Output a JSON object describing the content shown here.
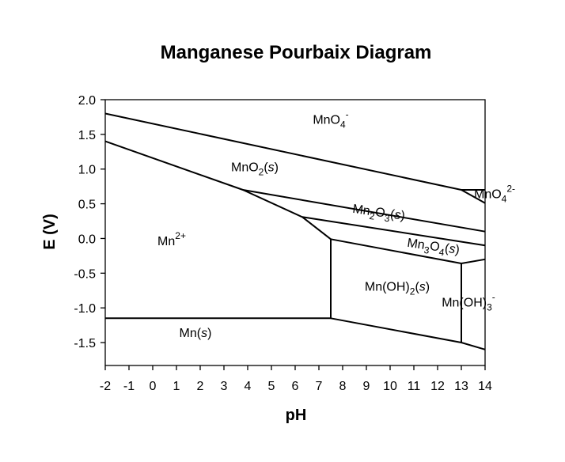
{
  "chart_data": {
    "type": "line",
    "title": "Manganese Pourbaix Diagram",
    "xlabel": "pH",
    "ylabel": "E (V)",
    "xlim": [
      -2,
      14
    ],
    "ylim": [
      -1.83,
      2.0
    ],
    "xticks": [
      "-2",
      "-1",
      "0",
      "1",
      "2",
      "3",
      "4",
      "5",
      "6",
      "7",
      "8",
      "9",
      "10",
      "11",
      "12",
      "13",
      "14"
    ],
    "yticks": [
      "2.0",
      "1.5",
      "1.0",
      "0.5",
      "0.0",
      "-0.5",
      "-1.0",
      "-1.5"
    ],
    "grid": false,
    "boundaries": [
      {
        "x": [
          -2,
          13.0
        ],
        "y": [
          1.8,
          0.7
        ]
      },
      {
        "x": [
          13.0,
          14.0
        ],
        "y": [
          0.7,
          0.7
        ]
      },
      {
        "x": [
          13.0,
          14.0
        ],
        "y": [
          0.7,
          0.51
        ]
      },
      {
        "x": [
          -2,
          3.8,
          6.3,
          7.5
        ],
        "y": [
          1.4,
          0.7,
          0.31,
          -0.01
        ]
      },
      {
        "x": [
          3.8,
          14.0
        ],
        "y": [
          0.7,
          0.1
        ]
      },
      {
        "x": [
          6.3,
          14.0
        ],
        "y": [
          0.31,
          -0.1
        ]
      },
      {
        "x": [
          7.5,
          13.0,
          14.0
        ],
        "y": [
          -0.01,
          -0.36,
          -0.3
        ]
      },
      {
        "x": [
          7.5,
          7.5
        ],
        "y": [
          -0.01,
          -1.15
        ]
      },
      {
        "x": [
          13.0,
          13.0
        ],
        "y": [
          -0.36,
          -1.5
        ]
      },
      {
        "x": [
          -2,
          7.5
        ],
        "y": [
          -1.15,
          -1.15
        ]
      },
      {
        "x": [
          7.5,
          13.0,
          14.0
        ],
        "y": [
          -1.15,
          -1.5,
          -1.6
        ]
      }
    ],
    "species": [
      {
        "base": "MnO",
        "sub": "4",
        "sup": "-",
        "x": 7.5,
        "y": 1.65
      },
      {
        "base": "MnO",
        "sub": "2",
        "paren": "s",
        "x": 4.3,
        "y": 0.97
      },
      {
        "base": "Mn",
        "sup": "2+",
        "x": 0.8,
        "y": -0.1
      },
      {
        "base": "Mn",
        "paren": "s",
        "x": 1.8,
        "y": -1.42
      },
      {
        "base": "Mn(OH)",
        "sub": "2",
        "paren": "s",
        "x": 10.3,
        "y": -0.75
      },
      {
        "base": "Mn(OH)",
        "sub": "3",
        "sup": "-",
        "x": 13.3,
        "y": -0.98
      },
      {
        "base": "MnO",
        "sub": "4",
        "sup": "2-",
        "x": 14.4,
        "y": 0.58
      },
      {
        "parts": [
          "Mn",
          "2",
          "O",
          "3",
          "(s)"
        ],
        "x": 9.5,
        "y": 0.32,
        "rotate": 8
      },
      {
        "parts": [
          "Mn",
          "3",
          "O",
          "4",
          "(s)"
        ],
        "x": 11.8,
        "y": -0.17,
        "rotate": 8
      }
    ]
  }
}
